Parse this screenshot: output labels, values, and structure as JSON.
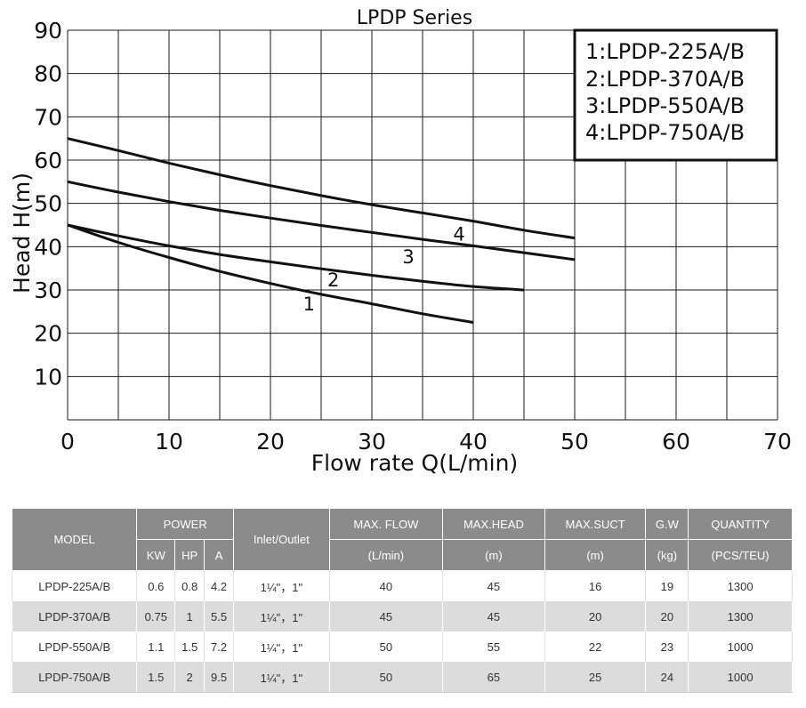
{
  "chart_data": {
    "type": "line",
    "title": "LPDP Series",
    "xlabel": "Flow rate Q(L/min)",
    "ylabel": "Head H(m)",
    "xlim": [
      0,
      70
    ],
    "ylim": [
      0,
      90
    ],
    "xticks": [
      0,
      10,
      20,
      30,
      40,
      50,
      60,
      70
    ],
    "yticks": [
      10,
      20,
      30,
      40,
      50,
      60,
      70,
      80,
      90
    ],
    "grid": true,
    "legend_position": "top-right",
    "legend": [
      "1:LPDP-225A/B",
      "2:LPDP-370A/B",
      "3:LPDP-550A/B",
      "4:LPDP-750A/B"
    ],
    "series": [
      {
        "label": "1",
        "x": [
          0,
          5,
          10,
          15,
          20,
          25,
          30,
          35,
          40
        ],
        "y": [
          45,
          41,
          37.5,
          34.3,
          31.5,
          29,
          26.8,
          24.5,
          22.5
        ]
      },
      {
        "label": "2",
        "x": [
          0,
          5,
          10,
          15,
          20,
          25,
          30,
          35,
          40,
          45
        ],
        "y": [
          45,
          42.5,
          40.2,
          38.2,
          36.5,
          34.9,
          33.4,
          32,
          30.8,
          30
        ]
      },
      {
        "label": "3",
        "x": [
          0,
          5,
          10,
          15,
          20,
          25,
          30,
          35,
          40,
          45,
          50
        ],
        "y": [
          55,
          52.6,
          50.4,
          48.4,
          46.6,
          44.9,
          43.3,
          41.7,
          40.2,
          38.6,
          37
        ]
      },
      {
        "label": "4",
        "x": [
          0,
          5,
          10,
          15,
          20,
          25,
          30,
          35,
          40,
          45,
          50
        ],
        "y": [
          65,
          62.2,
          59.3,
          56.6,
          54.1,
          51.8,
          49.7,
          47.8,
          45.9,
          43.8,
          42
        ]
      }
    ],
    "curve_labels": [
      {
        "text": "1",
        "x": 23.8,
        "y": 25.3
      },
      {
        "text": "2",
        "x": 26.2,
        "y": 30.8
      },
      {
        "text": "3",
        "x": 33.6,
        "y": 36.2
      },
      {
        "text": "4",
        "x": 38.6,
        "y": 41.4
      }
    ]
  },
  "table": {
    "headers": {
      "model": "MODEL",
      "power": "POWER",
      "kw": "KW",
      "hp": "HP",
      "a": "A",
      "inlet_outlet": "Inlet/Outlet",
      "max_flow": "MAX. FLOW",
      "max_flow_unit": "(L/min)",
      "max_head": "MAX.HEAD",
      "max_head_unit": "(m)",
      "max_suct": "MAX.SUCT",
      "max_suct_unit": "(m)",
      "gw": "G.W",
      "gw_unit": "(kg)",
      "quantity": "QUANTITY",
      "quantity_unit": "(PCS/TEU)"
    },
    "rows": [
      {
        "model": "LPDP-225A/B",
        "kw": "0.6",
        "hp": "0.8",
        "a": "4.2",
        "inlet_outlet": "1¼\"，1\"",
        "max_flow": "40",
        "max_head": "45",
        "max_suct": "16",
        "gw": "19",
        "quantity": "1300"
      },
      {
        "model": "LPDP-370A/B",
        "kw": "0.75",
        "hp": "1",
        "a": "5.5",
        "inlet_outlet": "1¼\"，1\"",
        "max_flow": "45",
        "max_head": "45",
        "max_suct": "20",
        "gw": "20",
        "quantity": "1300"
      },
      {
        "model": "LPDP-550A/B",
        "kw": "1.1",
        "hp": "1.5",
        "a": "7.2",
        "inlet_outlet": "1¼\"，1\"",
        "max_flow": "50",
        "max_head": "55",
        "max_suct": "22",
        "gw": "23",
        "quantity": "1000"
      },
      {
        "model": "LPDP-750A/B",
        "kw": "1.5",
        "hp": "2",
        "a": "9.5",
        "inlet_outlet": "1¼\"，1\"",
        "max_flow": "50",
        "max_head": "65",
        "max_suct": "25",
        "gw": "24",
        "quantity": "1000"
      }
    ]
  }
}
